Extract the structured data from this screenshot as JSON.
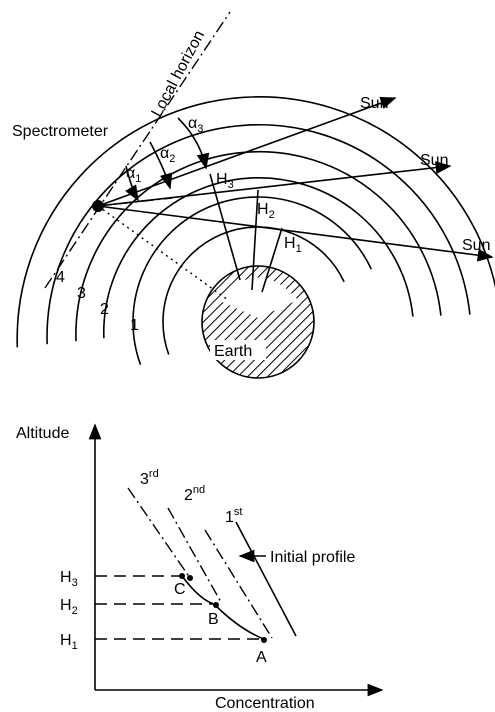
{
  "top": {
    "local_horizon": "Local horizon",
    "spectrometer": "Spectrometer",
    "earth": "Earth",
    "sun_labels": [
      "Sun",
      "Sun",
      "Sun"
    ],
    "layers": [
      "1",
      "2",
      "3",
      "4"
    ],
    "heights": [
      {
        "base": "H",
        "sub": "1"
      },
      {
        "base": "H",
        "sub": "2"
      },
      {
        "base": "H",
        "sub": "3"
      }
    ],
    "angles": [
      {
        "base": "α",
        "sub": "1"
      },
      {
        "base": "α",
        "sub": "2"
      },
      {
        "base": "α",
        "sub": "3"
      }
    ]
  },
  "bottom": {
    "y_axis": "Altitude",
    "x_axis": "Concentration",
    "initial_profile": "Initial profile",
    "iterations": [
      {
        "base": "1",
        "sup": "st"
      },
      {
        "base": "2",
        "sup": "nd"
      },
      {
        "base": "3",
        "sup": "rd"
      }
    ],
    "heights": [
      {
        "base": "H",
        "sub": "1"
      },
      {
        "base": "H",
        "sub": "2"
      },
      {
        "base": "H",
        "sub": "3"
      }
    ],
    "points": [
      "A",
      "B",
      "C"
    ]
  }
}
